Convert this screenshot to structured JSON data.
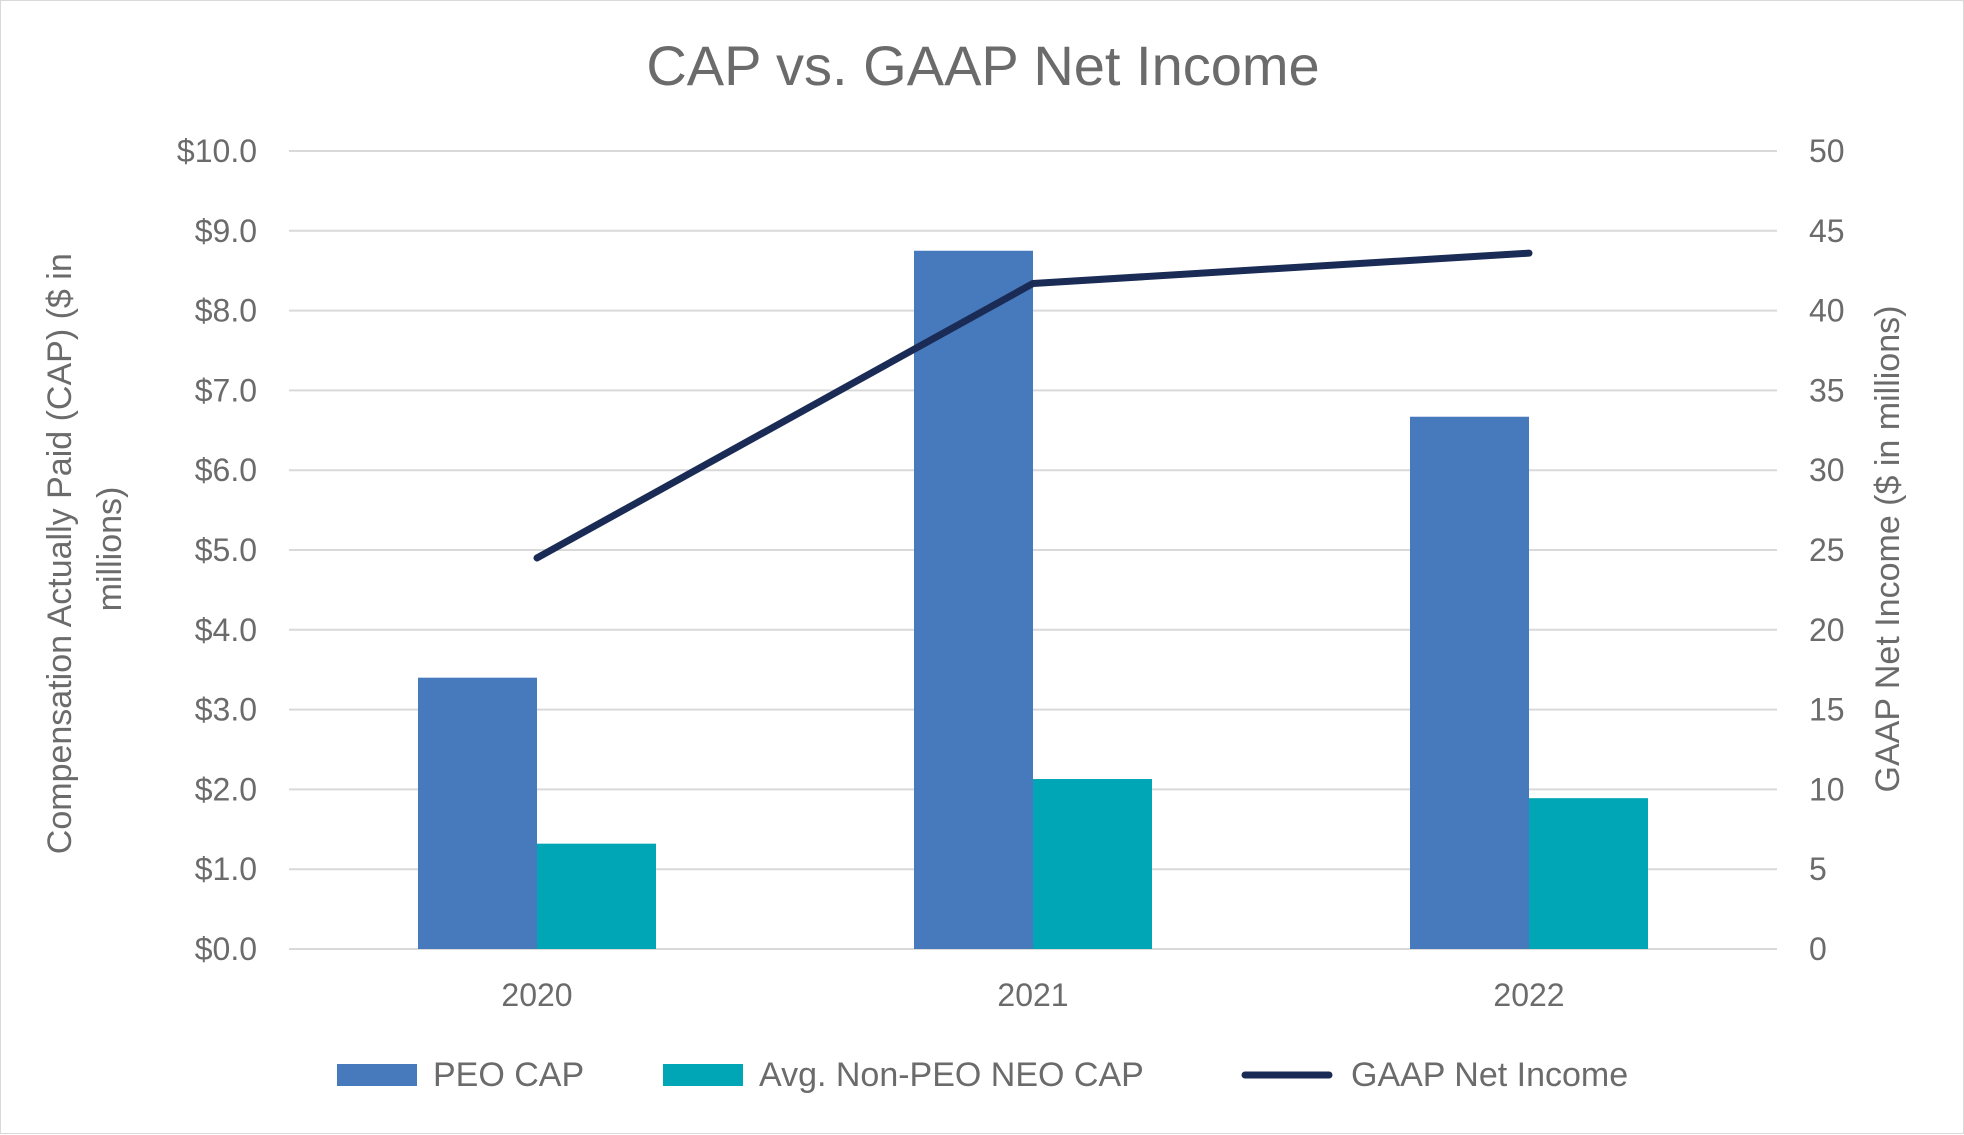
{
  "chart_data": {
    "type": "bar",
    "title": "CAP vs. GAAP Net Income",
    "categories": [
      "2020",
      "2021",
      "2022"
    ],
    "series": [
      {
        "name": "PEO CAP",
        "kind": "bar",
        "axis": "left",
        "color": "#4779BD",
        "values": [
          3.4,
          8.75,
          6.67
        ]
      },
      {
        "name": "Avg. Non-PEO NEO CAP",
        "kind": "bar",
        "axis": "left",
        "color": "#00A6B5",
        "values": [
          1.32,
          2.13,
          1.89
        ]
      },
      {
        "name": "GAAP Net Income",
        "kind": "line",
        "axis": "right",
        "color": "#1A2B55",
        "values": [
          24.5,
          41.7,
          43.6
        ]
      }
    ],
    "left_axis": {
      "label": "Compensation Actually Paid (CAP) ($ in millions)",
      "label_lines": [
        "Compensation Actually Paid (CAP) ($ in",
        "millions)"
      ],
      "range": [
        0,
        10
      ],
      "ticks": [
        0,
        1,
        2,
        3,
        4,
        5,
        6,
        7,
        8,
        9,
        10
      ],
      "tick_labels": [
        "$0.0",
        "$1.0",
        "$2.0",
        "$3.0",
        "$4.0",
        "$5.0",
        "$6.0",
        "$7.0",
        "$8.0",
        "$9.0",
        "$10.0"
      ]
    },
    "right_axis": {
      "label": "GAAP Net Income ($ in millions)",
      "range": [
        0,
        50
      ],
      "ticks": [
        0,
        5,
        10,
        15,
        20,
        25,
        30,
        35,
        40,
        45,
        50
      ],
      "tick_labels": [
        "0",
        "5",
        "10",
        "15",
        "20",
        "25",
        "30",
        "35",
        "40",
        "45",
        "50"
      ]
    },
    "grid": true,
    "legend": {
      "position": "bottom",
      "items": [
        "PEO CAP",
        "Avg. Non-PEO NEO CAP",
        "GAAP Net Income"
      ]
    },
    "colors": {
      "gridline": "#d9d9d9",
      "text": "#6b6b6b"
    }
  }
}
